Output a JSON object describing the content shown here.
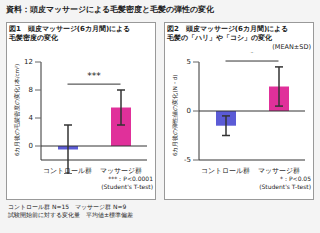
{
  "title": "資料：頭皮マッサージによる毛髪密度と毛髪の弾性の変化",
  "chart_data": [
    {
      "type": "bar",
      "title": "図1　頭皮マッサージ(6カ月間)による\n毛髪密度の変化",
      "y_label": "6カ月後の毛髪密度の変化(本/cm²)",
      "categories": [
        "コントロール群",
        "マッサージ群"
      ],
      "values": [
        -0.5,
        5.5
      ],
      "error": [
        3.5,
        2.5
      ],
      "colors": [
        "#5b5bd6",
        "#e0309a"
      ],
      "ylim": [
        -2,
        12
      ],
      "yticks": [
        0,
        4,
        8,
        12
      ],
      "significance": "***",
      "note": "***：P<0.0001\n(Student's T-test)"
    },
    {
      "type": "bar",
      "title": "図2　頭皮マッサージ(6カ月間)による\n毛髪の「ハリ」や「コシ」の変化",
      "subtitle": "(MEAN±SD)",
      "y_label": "6カ月後の弾性値の変化(N・d)",
      "categories": [
        "コントロール群",
        "マッサージ群"
      ],
      "values": [
        -1.5,
        2.5
      ],
      "error": [
        1,
        2
      ],
      "colors": [
        "#5b5bd6",
        "#e0309a"
      ],
      "ylim": [
        -5,
        5
      ],
      "yticks": [
        -5,
        0,
        5
      ],
      "significance": "*",
      "note": "*：P<0.05\n(Student's T-test)"
    }
  ],
  "notes": [
    "コントロール群 N=15　マッサージ群 N=9",
    "試験開始前に対する変化量　平均値±標準偏差"
  ]
}
